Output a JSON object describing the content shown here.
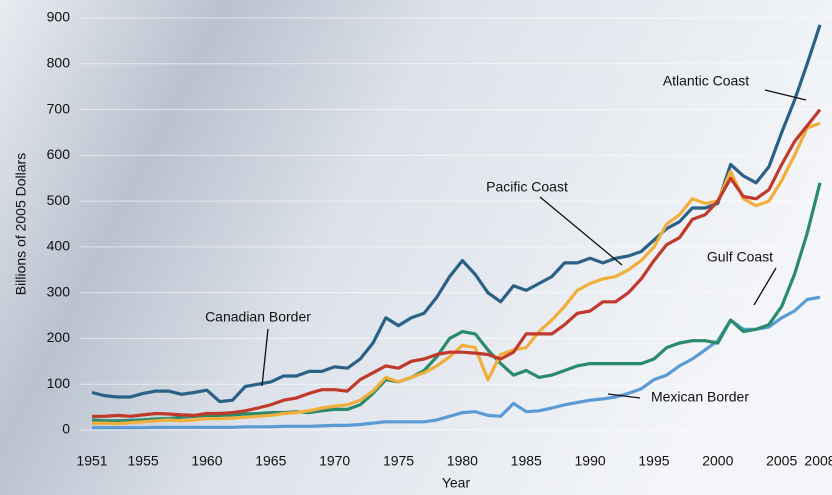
{
  "chart_data": {
    "type": "line",
    "y_label": "Billions of 2005 Dollars",
    "x_label": "Year",
    "x": [
      1951,
      1952,
      1953,
      1954,
      1955,
      1956,
      1957,
      1958,
      1959,
      1960,
      1961,
      1962,
      1963,
      1964,
      1965,
      1966,
      1967,
      1968,
      1969,
      1970,
      1971,
      1972,
      1973,
      1974,
      1975,
      1976,
      1977,
      1978,
      1979,
      1980,
      1981,
      1982,
      1983,
      1984,
      1985,
      1986,
      1987,
      1988,
      1989,
      1990,
      1991,
      1992,
      1993,
      1994,
      1995,
      1996,
      1997,
      1998,
      1999,
      2000,
      2001,
      2002,
      2003,
      2004,
      2005,
      2006,
      2007,
      2008
    ],
    "xlim": [
      1951,
      2008
    ],
    "xticks": [
      1951,
      1955,
      1960,
      1965,
      1970,
      1975,
      1980,
      1985,
      1990,
      1995,
      2000,
      2005,
      2008
    ],
    "ylim": [
      0,
      900
    ],
    "yticks": [
      0,
      100,
      200,
      300,
      400,
      500,
      600,
      700,
      800,
      900
    ],
    "grid": true,
    "series": [
      {
        "name": "Atlantic Coast",
        "color": "#2a6186",
        "values": [
          82,
          75,
          72,
          72,
          80,
          85,
          85,
          78,
          82,
          87,
          62,
          65,
          95,
          100,
          105,
          118,
          118,
          128,
          128,
          138,
          135,
          155,
          190,
          245,
          228,
          245,
          255,
          290,
          335,
          370,
          340,
          300,
          280,
          315,
          305,
          320,
          335,
          365,
          365,
          375,
          365,
          375,
          380,
          390,
          415,
          440,
          455,
          485,
          485,
          495,
          580,
          555,
          540,
          575,
          650,
          720,
          800,
          885
        ]
      },
      {
        "name": "Canadian Border",
        "color": "#c0392b",
        "values": [
          30,
          30,
          32,
          30,
          33,
          36,
          35,
          33,
          32,
          36,
          36,
          38,
          42,
          48,
          55,
          65,
          70,
          80,
          88,
          88,
          85,
          110,
          125,
          140,
          135,
          150,
          155,
          165,
          170,
          170,
          168,
          165,
          155,
          170,
          210,
          210,
          210,
          230,
          255,
          260,
          280,
          280,
          300,
          330,
          370,
          405,
          420,
          460,
          470,
          500,
          550,
          510,
          505,
          525,
          580,
          630,
          665,
          700
        ]
      },
      {
        "name": "Pacific Coast",
        "color": "#f2ae3a",
        "values": [
          15,
          15,
          14,
          16,
          18,
          20,
          22,
          20,
          22,
          25,
          25,
          26,
          28,
          30,
          32,
          36,
          38,
          42,
          48,
          52,
          55,
          65,
          85,
          115,
          105,
          115,
          125,
          140,
          160,
          185,
          180,
          110,
          165,
          175,
          180,
          215,
          240,
          270,
          305,
          320,
          330,
          335,
          350,
          370,
          400,
          450,
          470,
          505,
          495,
          500,
          565,
          505,
          490,
          500,
          545,
          600,
          660,
          670
        ]
      },
      {
        "name": "Gulf Coast",
        "color": "#2a8a6c",
        "values": [
          22,
          20,
          20,
          21,
          22,
          24,
          25,
          28,
          30,
          32,
          32,
          33,
          35,
          36,
          38,
          38,
          40,
          38,
          42,
          45,
          45,
          55,
          80,
          110,
          105,
          115,
          130,
          160,
          200,
          215,
          210,
          175,
          145,
          120,
          130,
          115,
          120,
          130,
          140,
          145,
          145,
          145,
          145,
          145,
          155,
          180,
          190,
          195,
          195,
          190,
          240,
          215,
          220,
          230,
          270,
          340,
          430,
          540
        ]
      },
      {
        "name": "Mexican Border",
        "color": "#5b9bd5",
        "values": [
          5,
          5,
          5,
          5,
          5,
          6,
          6,
          6,
          6,
          6,
          6,
          6,
          7,
          7,
          7,
          8,
          8,
          8,
          9,
          10,
          10,
          12,
          15,
          18,
          18,
          18,
          18,
          22,
          30,
          38,
          40,
          32,
          30,
          58,
          40,
          42,
          48,
          55,
          60,
          65,
          68,
          72,
          80,
          90,
          110,
          120,
          140,
          155,
          175,
          195,
          240,
          220,
          220,
          225,
          245,
          260,
          285,
          290
        ]
      }
    ]
  }
}
